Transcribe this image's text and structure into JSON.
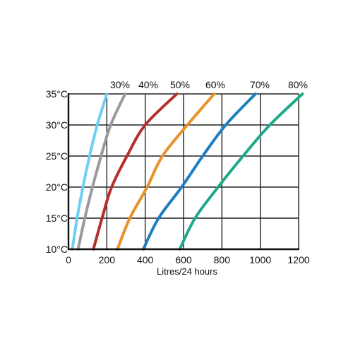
{
  "chart_data": {
    "type": "line",
    "title": "",
    "xlabel": "Litres/24 hours",
    "ylabel": "",
    "xlim": [
      0,
      1200
    ],
    "ylim": [
      10,
      35
    ],
    "grid": true,
    "xticks": [
      0,
      200,
      400,
      600,
      800,
      1000,
      1200
    ],
    "xtick_labels": [
      "0",
      "200",
      "400",
      "600",
      "800",
      "1000",
      "1200"
    ],
    "yticks": [
      10,
      15,
      20,
      25,
      30,
      35
    ],
    "ytick_labels": [
      "10°C",
      "15°C",
      "20°C",
      "25°C",
      "30°C",
      "35°C"
    ],
    "series": [
      {
        "name": "30%",
        "color": "#6ecff3",
        "points": [
          [
            20,
            10
          ],
          [
            45,
            15
          ],
          [
            75,
            20
          ],
          [
            110,
            25
          ],
          [
            150,
            30
          ],
          [
            200,
            35
          ]
        ]
      },
      {
        "name": "40%",
        "color": "#9a9a9a",
        "points": [
          [
            50,
            10
          ],
          [
            85,
            15
          ],
          [
            125,
            20
          ],
          [
            170,
            25
          ],
          [
            220,
            30
          ],
          [
            295,
            35
          ]
        ]
      },
      {
        "name": "50%",
        "color": "#b5302a",
        "points": [
          [
            130,
            10
          ],
          [
            175,
            15
          ],
          [
            225,
            20
          ],
          [
            305,
            25
          ],
          [
            400,
            30
          ],
          [
            565,
            35
          ]
        ]
      },
      {
        "name": "60%",
        "color": "#e8922a",
        "points": [
          [
            255,
            10
          ],
          [
            320,
            15
          ],
          [
            410,
            20
          ],
          [
            490,
            25
          ],
          [
            620,
            30
          ],
          [
            760,
            35
          ]
        ]
      },
      {
        "name": "70%",
        "color": "#1b7fc0",
        "points": [
          [
            390,
            10
          ],
          [
            470,
            15
          ],
          [
            590,
            20
          ],
          [
            700,
            25
          ],
          [
            820,
            30
          ],
          [
            975,
            35
          ]
        ]
      },
      {
        "name": "80%",
        "color": "#1ea88a",
        "points": [
          [
            580,
            10
          ],
          [
            660,
            15
          ],
          [
            780,
            20
          ],
          [
            910,
            25
          ],
          [
            1050,
            30
          ],
          [
            1220,
            35
          ]
        ]
      }
    ]
  }
}
